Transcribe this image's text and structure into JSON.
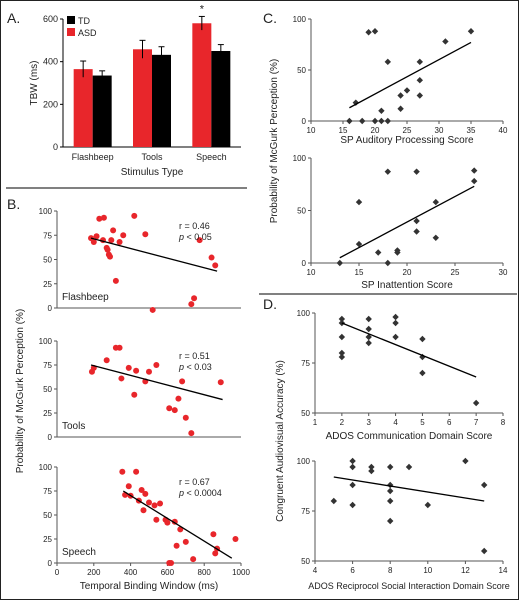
{
  "panel_letters": {
    "A": "A.",
    "B": "B.",
    "C": "C.",
    "D": "D."
  },
  "chart_data": [
    {
      "id": "A",
      "type": "bar",
      "ylabel": "TBW (ms)",
      "xlabel": "Stimulus Type",
      "categories": [
        "Flashbeep",
        "Tools",
        "Speech"
      ],
      "ylim": [
        0,
        600
      ],
      "yticks": [
        0,
        200,
        400,
        600
      ],
      "legend": "top-left",
      "significance": [
        {
          "category": "Speech",
          "label": "*"
        }
      ],
      "series": [
        {
          "name": "TD",
          "color": "#000000",
          "values": [
            335,
            432,
            450
          ],
          "errors": [
            22,
            38,
            30
          ]
        },
        {
          "name": "ASD",
          "color": "#e8262b",
          "values": [
            365,
            458,
            580
          ],
          "errors": [
            38,
            42,
            32
          ]
        }
      ]
    },
    {
      "id": "B",
      "type": "scatter",
      "ylabel": "Probability of McGurk Perception (%)",
      "xlabel": "Temporal Binding Window (ms)",
      "xlim": [
        0,
        1000
      ],
      "xticks": [
        0,
        200,
        400,
        600,
        800,
        1000
      ],
      "ylim": [
        0,
        100
      ],
      "yticks": [
        0,
        25,
        50,
        75,
        100
      ],
      "point_color": "#e8262b",
      "subplots": [
        {
          "label": "Flashbeep",
          "r": "r = 0.46",
          "p_prefix": "p",
          "p_value": " < 0.05",
          "fit": [
            [
              185,
              72
            ],
            [
              870,
              38
            ]
          ],
          "points": [
            [
              185,
              72
            ],
            [
              200,
              68
            ],
            [
              215,
              74
            ],
            [
              230,
              92
            ],
            [
              250,
              70
            ],
            [
              255,
              93
            ],
            [
              270,
              62
            ],
            [
              275,
              60
            ],
            [
              282,
              55
            ],
            [
              288,
              53
            ],
            [
              295,
              70
            ],
            [
              305,
              80
            ],
            [
              320,
              28
            ],
            [
              340,
              68
            ],
            [
              360,
              75
            ],
            [
              420,
              95
            ],
            [
              480,
              76
            ],
            [
              520,
              -2
            ],
            [
              730,
              4
            ],
            [
              745,
              10
            ],
            [
              775,
              70
            ],
            [
              840,
              52
            ],
            [
              860,
              44
            ]
          ]
        },
        {
          "label": "Tools",
          "r": "r = 0.51",
          "p_prefix": "p",
          "p_value": " < 0.03",
          "fit": [
            [
              185,
              75
            ],
            [
              900,
              39
            ]
          ],
          "points": [
            [
              190,
              68
            ],
            [
              200,
              72
            ],
            [
              270,
              80
            ],
            [
              320,
              93
            ],
            [
              340,
              93
            ],
            [
              350,
              61
            ],
            [
              390,
              72
            ],
            [
              420,
              44
            ],
            [
              430,
              69
            ],
            [
              480,
              58
            ],
            [
              500,
              68
            ],
            [
              540,
              75
            ],
            [
              610,
              30
            ],
            [
              640,
              28
            ],
            [
              660,
              40
            ],
            [
              680,
              58
            ],
            [
              700,
              20
            ],
            [
              730,
              4
            ],
            [
              890,
              57
            ]
          ]
        },
        {
          "label": "Speech",
          "r": "r = 0.67",
          "p_prefix": "p",
          "p_value": " < 0.0004",
          "fit": [
            [
              360,
              75
            ],
            [
              950,
              5
            ]
          ],
          "points": [
            [
              355,
              95
            ],
            [
              370,
              71
            ],
            [
              390,
              80
            ],
            [
              400,
              70
            ],
            [
              430,
              95
            ],
            [
              445,
              65
            ],
            [
              460,
              76
            ],
            [
              470,
              55
            ],
            [
              480,
              72
            ],
            [
              500,
              63
            ],
            [
              530,
              60
            ],
            [
              540,
              45
            ],
            [
              560,
              62
            ],
            [
              590,
              45
            ],
            [
              600,
              42
            ],
            [
              610,
              0
            ],
            [
              620,
              0
            ],
            [
              640,
              43
            ],
            [
              650,
              18
            ],
            [
              670,
              35
            ],
            [
              700,
              22
            ],
            [
              740,
              4
            ],
            [
              850,
              30
            ],
            [
              860,
              10
            ],
            [
              870,
              15
            ],
            [
              970,
              25
            ]
          ]
        }
      ]
    },
    {
      "id": "C",
      "type": "scatter",
      "ylabel": "Probability of McGurk Perception (%)",
      "point_color": "#333333",
      "subplots": [
        {
          "xlabel": "SP Auditory Processing Score",
          "xlim": [
            10,
            40
          ],
          "xticks": [
            10,
            15,
            20,
            25,
            30,
            35,
            40
          ],
          "ylim": [
            0,
            100
          ],
          "yticks": [
            0,
            50,
            100
          ],
          "fit": [
            [
              16,
              13
            ],
            [
              35,
              77
            ]
          ],
          "points": [
            [
              16,
              0
            ],
            [
              17,
              18
            ],
            [
              18,
              0
            ],
            [
              19,
              87
            ],
            [
              20,
              88
            ],
            [
              20,
              0
            ],
            [
              21,
              10
            ],
            [
              21,
              0
            ],
            [
              22,
              58
            ],
            [
              22,
              0
            ],
            [
              24,
              12
            ],
            [
              24,
              25
            ],
            [
              25,
              30
            ],
            [
              27,
              58
            ],
            [
              27,
              40
            ],
            [
              27,
              25
            ],
            [
              31,
              78
            ],
            [
              35,
              88
            ]
          ]
        },
        {
          "xlabel": "SP Inattention Score",
          "xlim": [
            10,
            30
          ],
          "xticks": [
            10,
            15,
            20,
            25,
            30
          ],
          "ylim": [
            0,
            100
          ],
          "yticks": [
            0,
            50,
            100
          ],
          "fit": [
            [
              13,
              5
            ],
            [
              27,
              73
            ]
          ],
          "points": [
            [
              13,
              0
            ],
            [
              15,
              58
            ],
            [
              15,
              18
            ],
            [
              17,
              10
            ],
            [
              18,
              87
            ],
            [
              18,
              0
            ],
            [
              19,
              10
            ],
            [
              19,
              12
            ],
            [
              21,
              87
            ],
            [
              21,
              40
            ],
            [
              21,
              30
            ],
            [
              23,
              58
            ],
            [
              23,
              24
            ],
            [
              27,
              88
            ],
            [
              27,
              78
            ]
          ]
        }
      ]
    },
    {
      "id": "D",
      "type": "scatter",
      "ylabel": "Congruent Audiovisual Accuracy (%)",
      "point_color": "#333333",
      "subplots": [
        {
          "xlabel": "ADOS Communication Domain Score",
          "xlim": [
            1,
            8
          ],
          "xticks": [
            1,
            2,
            3,
            4,
            5,
            6,
            7,
            8
          ],
          "ylim": [
            50,
            100
          ],
          "yticks": [
            50,
            75,
            100
          ],
          "fit": [
            [
              2,
              95
            ],
            [
              7,
              68
            ]
          ],
          "points": [
            [
              2,
              97
            ],
            [
              2,
              95
            ],
            [
              2,
              88
            ],
            [
              2,
              80
            ],
            [
              2,
              78
            ],
            [
              3,
              97
            ],
            [
              3,
              92
            ],
            [
              3,
              88
            ],
            [
              3,
              85
            ],
            [
              4,
              98
            ],
            [
              4,
              95
            ],
            [
              4,
              88
            ],
            [
              5,
              87
            ],
            [
              5,
              78
            ],
            [
              5,
              70
            ],
            [
              7,
              55
            ]
          ]
        },
        {
          "xlabel": "ADOS Reciprocol Social Interaction Domain Score",
          "xlim": [
            4,
            14
          ],
          "xticks": [
            4,
            6,
            8,
            10,
            12,
            14
          ],
          "ylim": [
            50,
            100
          ],
          "yticks": [
            50,
            75,
            100
          ],
          "fit": [
            [
              5,
              92
            ],
            [
              13,
              80
            ]
          ],
          "points": [
            [
              5,
              80
            ],
            [
              6,
              100
            ],
            [
              6,
              97
            ],
            [
              6,
              88
            ],
            [
              6,
              78
            ],
            [
              7,
              97
            ],
            [
              7,
              95
            ],
            [
              8,
              97
            ],
            [
              8,
              88
            ],
            [
              8,
              85
            ],
            [
              8,
              80
            ],
            [
              8,
              70
            ],
            [
              9,
              97
            ],
            [
              10,
              78
            ],
            [
              12,
              100
            ],
            [
              13,
              88
            ],
            [
              13,
              55
            ]
          ]
        }
      ]
    }
  ]
}
